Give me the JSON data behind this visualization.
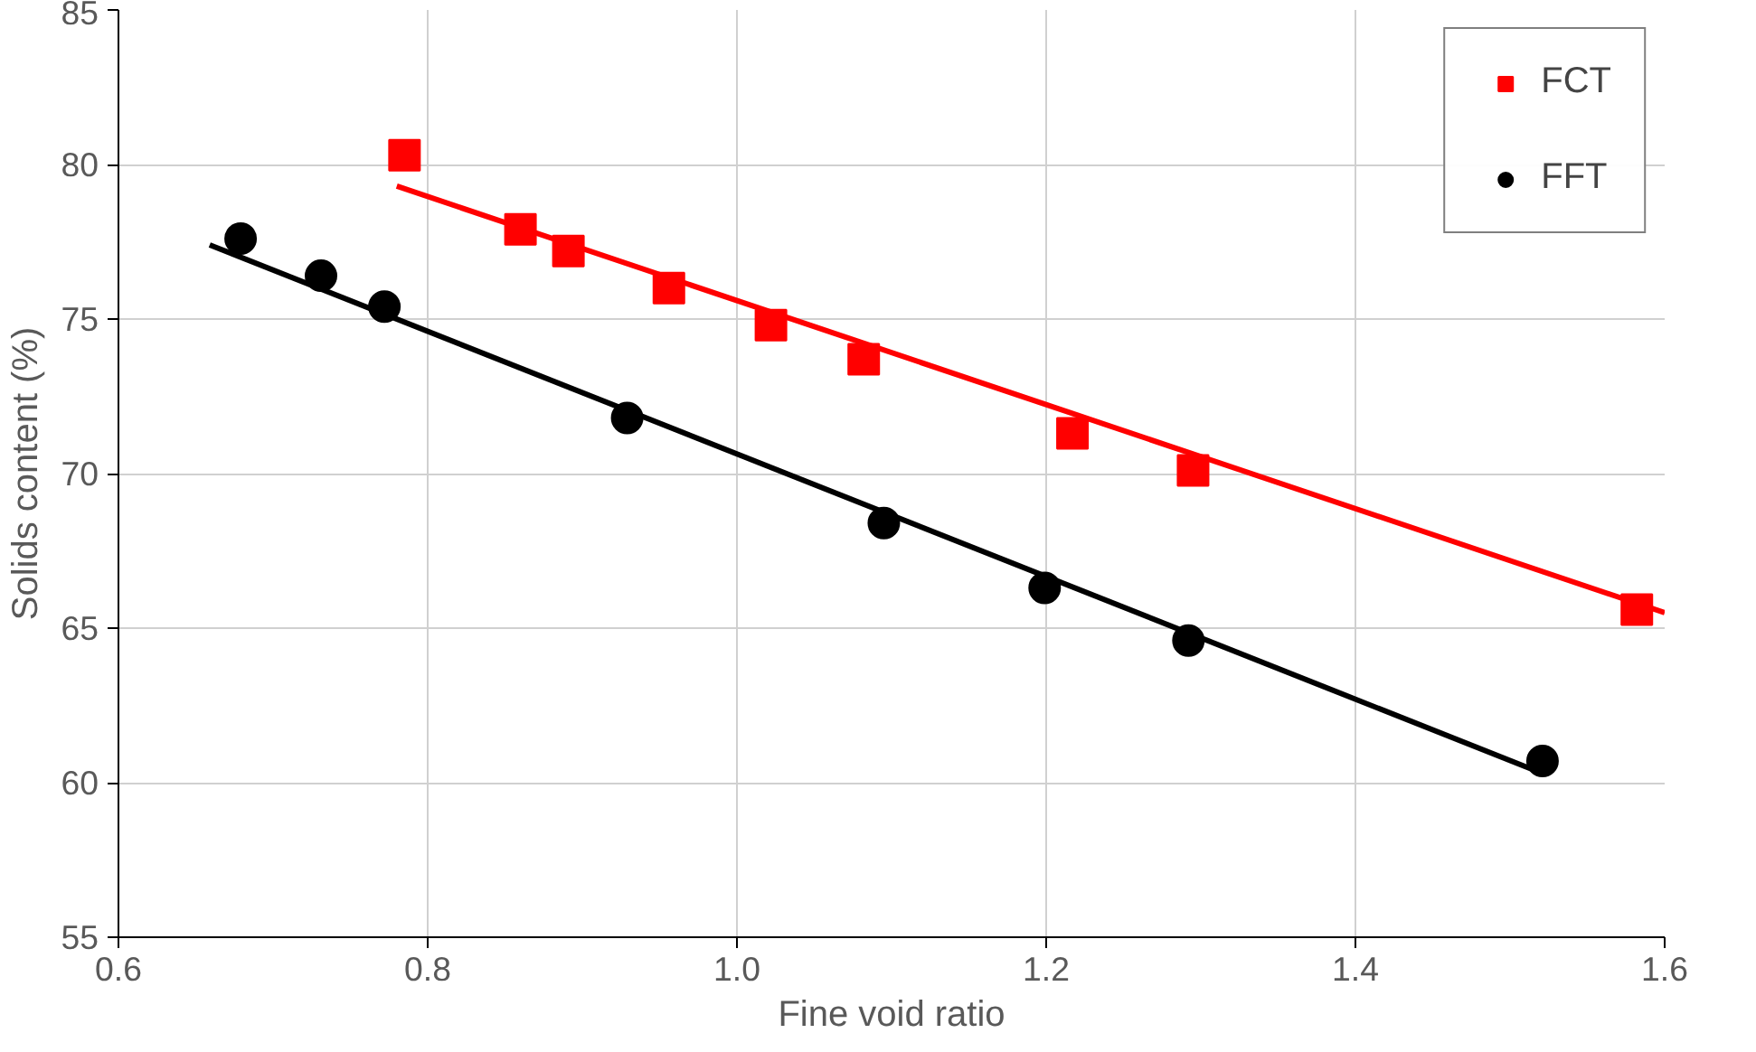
{
  "chart_data": {
    "type": "scatter",
    "xlabel": "Fine void ratio",
    "ylabel": "Solids content (%)",
    "xlim": [
      0.6,
      1.6
    ],
    "ylim": [
      55,
      85
    ],
    "xticks": [
      {
        "value": 0.6,
        "label": "0.6"
      },
      {
        "value": 0.8,
        "label": "0.8"
      },
      {
        "value": 1.0,
        "label": "1.0"
      },
      {
        "value": 1.2,
        "label": "1.2"
      },
      {
        "value": 1.4,
        "label": "1.4"
      },
      {
        "value": 1.6,
        "label": "1.6"
      }
    ],
    "yticks": [
      55,
      60,
      65,
      70,
      75,
      80,
      85
    ],
    "grid": true,
    "legend": "top right",
    "series": [
      {
        "name": "FCT",
        "color": "#ff0000",
        "marker": "square",
        "x": [
          0.785,
          0.86,
          0.891,
          0.956,
          1.022,
          1.082,
          1.217,
          1.295,
          1.582
        ],
        "values": [
          80.3,
          77.9,
          77.2,
          76.0,
          74.8,
          73.7,
          71.3,
          70.1,
          65.6
        ]
      },
      {
        "name": "FFT",
        "color": "#000000",
        "marker": "circle",
        "x": [
          0.679,
          0.731,
          0.772,
          0.929,
          1.095,
          1.199,
          1.292,
          1.521
        ],
        "values": [
          77.6,
          76.4,
          75.4,
          71.8,
          68.4,
          66.3,
          64.6,
          60.7
        ]
      },
      {
        "type": "line",
        "color": "#ff0000",
        "x": [
          0.78,
          1.6
        ],
        "values": [
          79.3,
          65.5
        ]
      },
      {
        "type": "line",
        "color": "#000000",
        "x": [
          0.659,
          1.521
        ],
        "values": [
          77.4,
          60.3
        ]
      }
    ]
  }
}
